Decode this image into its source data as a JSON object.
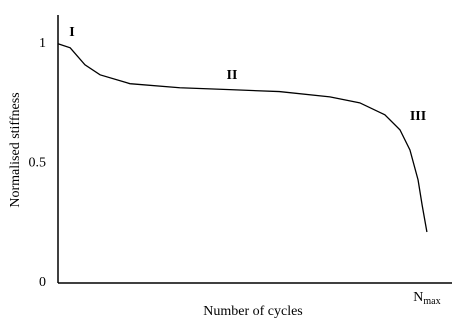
{
  "chart_data": {
    "type": "line",
    "x_label": "Number of cycles",
    "y_label": "Normalised stiffness",
    "annotations": [
      "I",
      "II",
      "III"
    ],
    "x": [
      0,
      0.033,
      0.073,
      0.114,
      0.195,
      0.33,
      0.466,
      0.6,
      0.737,
      0.818,
      0.886,
      0.927,
      0.954,
      0.976,
      0.987,
      1
    ],
    "series": [
      {
        "color": "#000000",
        "values": [
          1,
          0.983,
          0.912,
          0.87,
          0.833,
          0.816,
          0.808,
          0.8,
          0.778,
          0.753,
          0.703,
          0.64,
          0.556,
          0.431,
          0.326,
          0.213
        ]
      }
    ],
    "xlim": [
      0,
      1.068
    ],
    "xticks": [
      {
        "value": 1,
        "label": "N"
      }
    ],
    "x_tick_subscript": "max",
    "ylim": [
      0,
      1.12
    ],
    "yticks": [
      0,
      0.5,
      1
    ],
    "grid": false
  }
}
